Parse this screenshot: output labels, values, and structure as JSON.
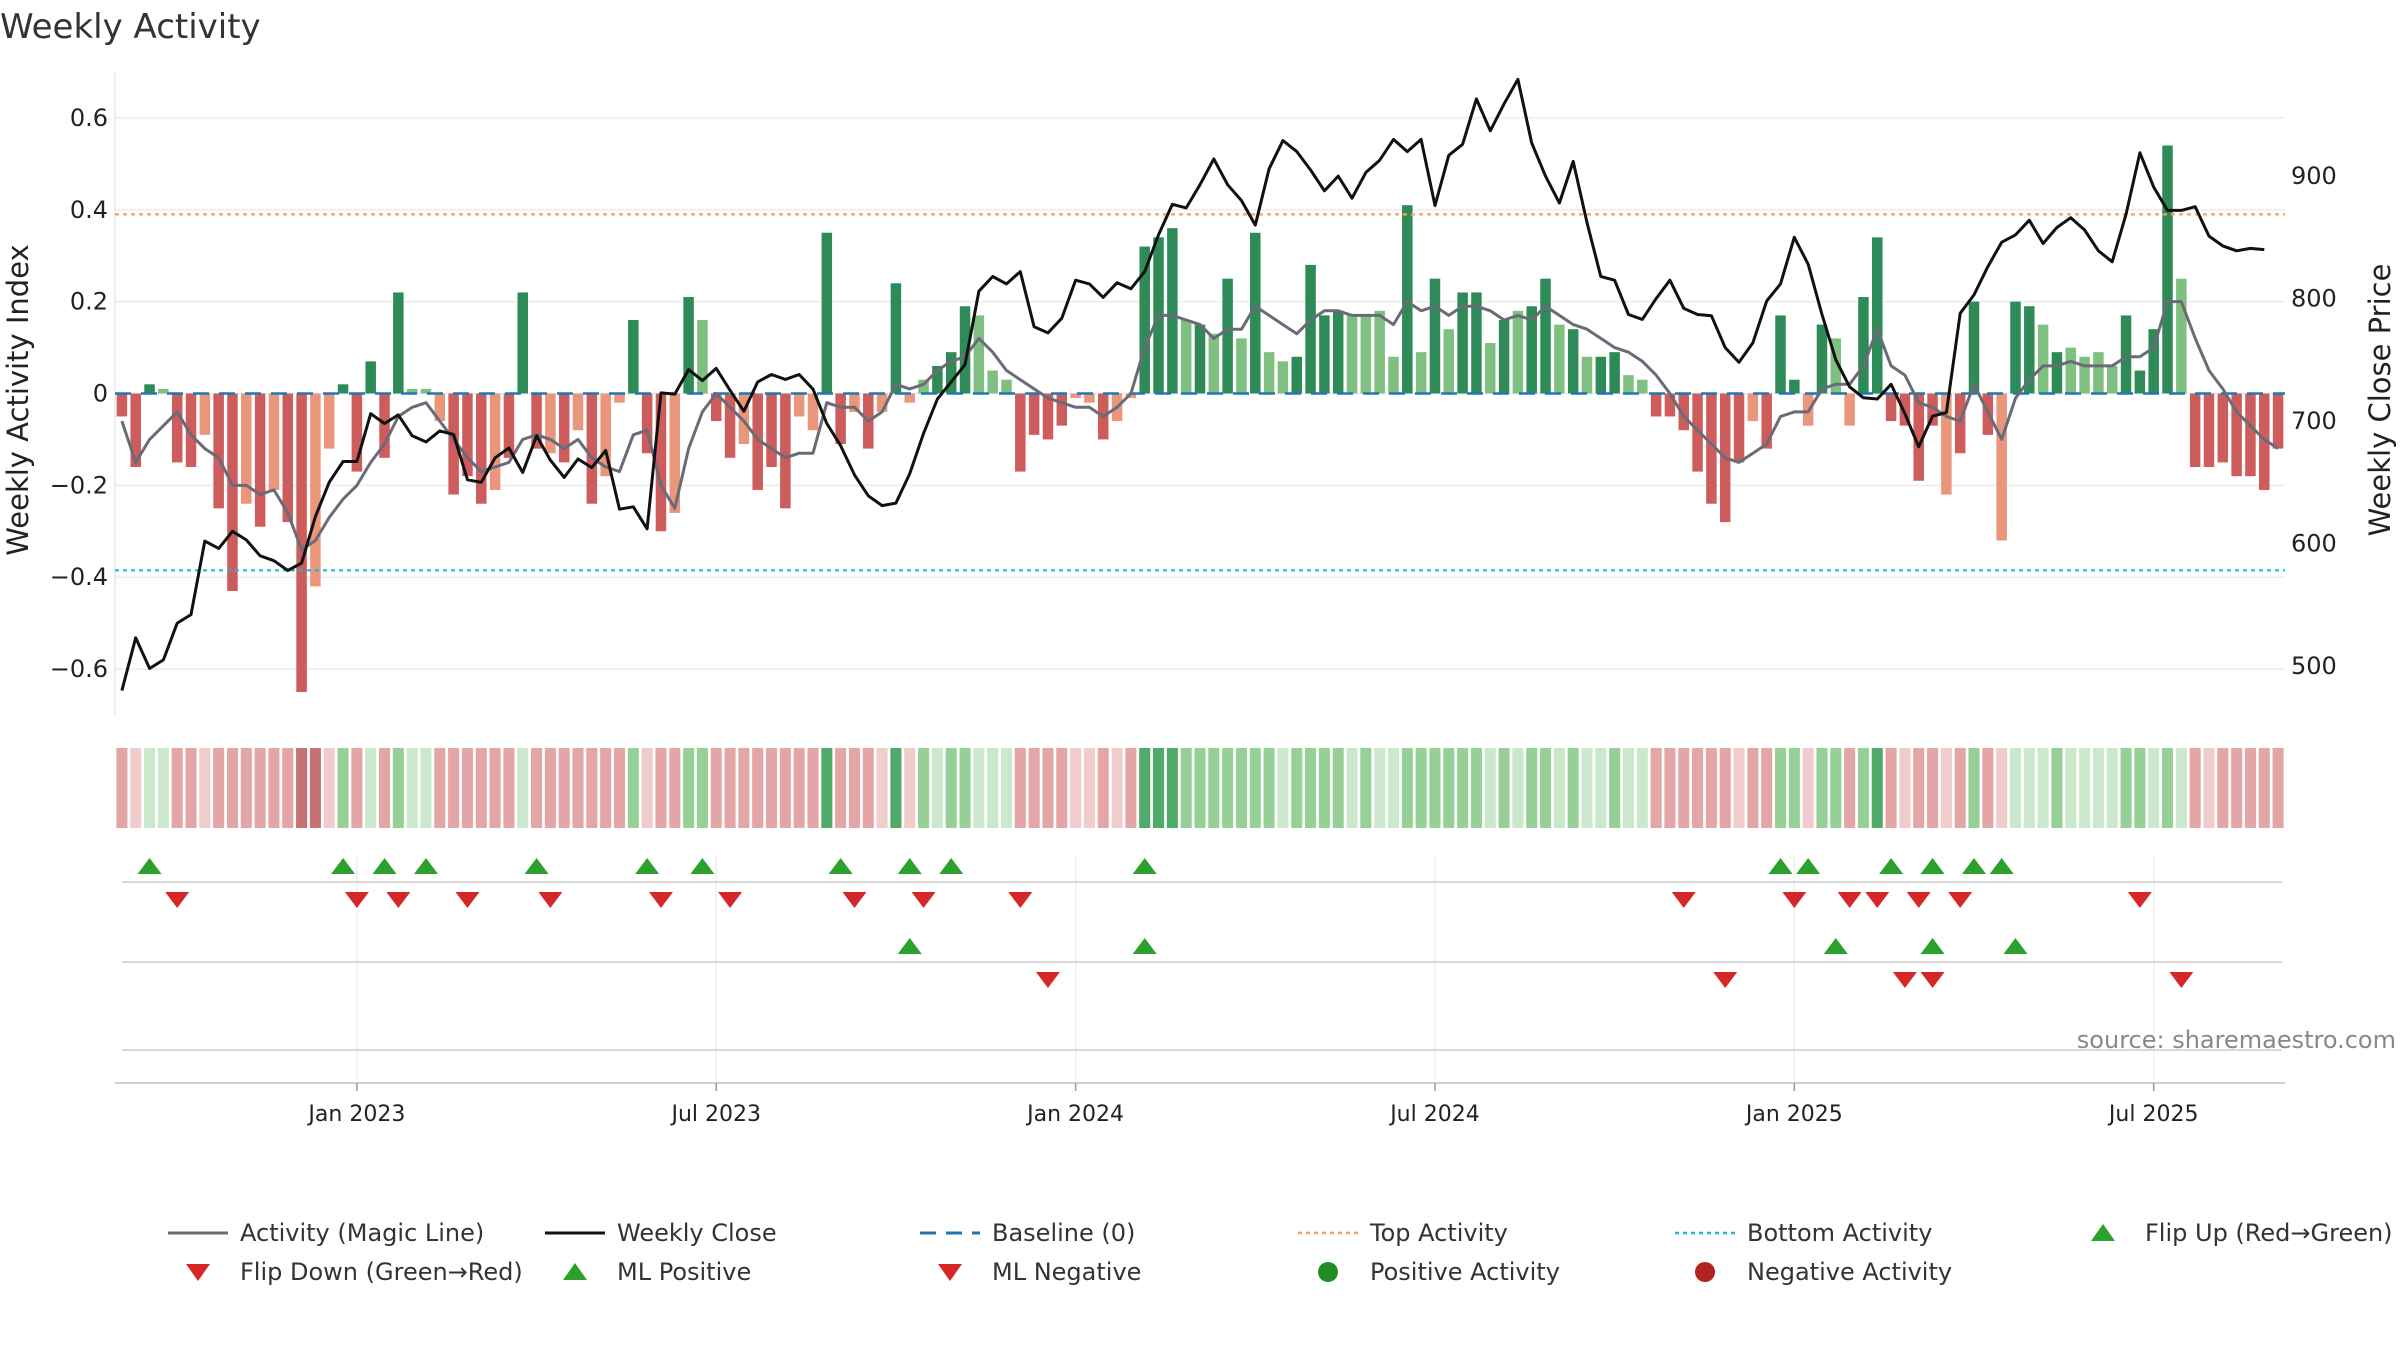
{
  "title": "Weekly Activity",
  "source": "source: sharemaestro.com",
  "colors": {
    "strong_green": "#2e8b57",
    "light_green": "#7fbf7f",
    "strong_red": "#cd5c5c",
    "light_red": "#e9967a",
    "magic_line": "#6b6b78",
    "close_line": "#111111",
    "baseline": "#1f77b4",
    "top_activity": "#f4a460",
    "bottom_activity": "#17becf",
    "marker_green": "#2ca02c",
    "marker_red": "#d62728",
    "dot_green": "#228b22",
    "dot_red": "#b22222"
  },
  "legend": [
    {
      "key": "magic",
      "label": "Activity (Magic Line)",
      "symbol": "line",
      "color": "#6b6b78"
    },
    {
      "key": "close",
      "label": "Weekly Close",
      "symbol": "line",
      "color": "#111111"
    },
    {
      "key": "baseline",
      "label": "Baseline (0)",
      "symbol": "dashed",
      "color": "#1f77b4"
    },
    {
      "key": "top",
      "label": "Top Activity",
      "symbol": "dotted",
      "color": "#f4a460"
    },
    {
      "key": "bottom",
      "label": "Bottom Activity",
      "symbol": "dotted",
      "color": "#17becf"
    },
    {
      "key": "flipup",
      "label": "Flip Up (Red→Green)",
      "symbol": "triangle-up",
      "color": "#2ca02c"
    },
    {
      "key": "flipdown",
      "label": "Flip Down (Green→Red)",
      "symbol": "triangle-down",
      "color": "#d62728"
    },
    {
      "key": "mlpos",
      "label": "ML Positive",
      "symbol": "triangle-up",
      "color": "#2ca02c"
    },
    {
      "key": "mlneg",
      "label": "ML Negative",
      "symbol": "triangle-down",
      "color": "#d62728"
    },
    {
      "key": "pos",
      "label": "Positive Activity",
      "symbol": "dot",
      "color": "#228b22"
    },
    {
      "key": "neg",
      "label": "Negative Activity",
      "symbol": "dot",
      "color": "#b22222"
    }
  ],
  "chart_data": {
    "type": "bar",
    "ylabel": "Weekly Activity Index",
    "y2label": "Weekly Close Price",
    "ylim": [
      -0.7,
      0.7
    ],
    "y2lim": [
      460,
      985
    ],
    "yticks": [
      0.6,
      0.4,
      0.2,
      0,
      -0.2,
      -0.4,
      -0.6
    ],
    "ytick_labels": [
      "0.6",
      "0.4",
      "0.2",
      "0",
      "−0.2",
      "−0.4",
      "−0.6"
    ],
    "y2ticks": [
      900,
      800,
      700,
      600,
      500
    ],
    "xticks": [
      {
        "label": "Jan 2023",
        "week": 17
      },
      {
        "label": "Jul 2023",
        "week": 43
      },
      {
        "label": "Jan 2024",
        "week": 69
      },
      {
        "label": "Jul 2024",
        "week": 95
      },
      {
        "label": "Jan 2025",
        "week": 121
      },
      {
        "label": "Jul 2025",
        "week": 147
      }
    ],
    "top_activity": 0.39,
    "bottom_activity": -0.385,
    "baseline": 0,
    "activity": [
      -0.05,
      -0.16,
      0.02,
      0.01,
      -0.15,
      -0.16,
      -0.09,
      -0.25,
      -0.43,
      -0.24,
      -0.29,
      -0.21,
      -0.28,
      -0.65,
      -0.42,
      -0.12,
      0.02,
      -0.17,
      0.07,
      -0.14,
      0.22,
      0.01,
      0.01,
      -0.06,
      -0.22,
      -0.18,
      -0.24,
      -0.21,
      -0.14,
      0.22,
      -0.12,
      -0.13,
      -0.15,
      -0.08,
      -0.24,
      -0.18,
      -0.02,
      0.16,
      -0.13,
      -0.3,
      -0.26,
      0.21,
      0.16,
      -0.06,
      -0.14,
      -0.11,
      -0.21,
      -0.16,
      -0.25,
      -0.05,
      -0.08,
      0.35,
      -0.11,
      -0.04,
      -0.12,
      -0.04,
      0.24,
      -0.02,
      0.03,
      0.06,
      0.09,
      0.19,
      0.17,
      0.05,
      0.03,
      -0.17,
      -0.09,
      -0.1,
      -0.07,
      -0.01,
      -0.02,
      -0.1,
      -0.06,
      -0.01,
      0.32,
      0.34,
      0.36,
      0.16,
      0.15,
      0.13,
      0.25,
      0.12,
      0.35,
      0.09,
      0.07,
      0.08,
      0.28,
      0.17,
      0.18,
      0.17,
      0.17,
      0.18,
      0.08,
      0.41,
      0.09,
      0.25,
      0.14,
      0.22,
      0.22,
      0.11,
      0.16,
      0.18,
      0.19,
      0.25,
      0.15,
      0.14,
      0.08,
      0.08,
      0.09,
      0.04,
      0.03,
      -0.05,
      -0.05,
      -0.08,
      -0.17,
      -0.24,
      -0.28,
      -0.15,
      -0.06,
      -0.12,
      0.17,
      0.03,
      -0.07,
      0.15,
      0.12,
      -0.07,
      0.21,
      0.34,
      -0.06,
      -0.07,
      -0.19,
      -0.07,
      -0.22,
      -0.13,
      0.2,
      -0.09,
      -0.32,
      0.2,
      0.19,
      0.15,
      0.09,
      0.1,
      0.08,
      0.09,
      0.06,
      0.17,
      0.05,
      0.14,
      0.54,
      0.25,
      -0.16,
      -0.16,
      -0.15,
      -0.18,
      -0.18,
      -0.21,
      -0.12
    ],
    "bar_strength": [
      1,
      1,
      1,
      0,
      1,
      1,
      0,
      1,
      1,
      0,
      1,
      0,
      1,
      1,
      0,
      0,
      1,
      1,
      1,
      1,
      1,
      0,
      0,
      0,
      1,
      1,
      1,
      0,
      1,
      1,
      1,
      0,
      1,
      0,
      1,
      0,
      0,
      1,
      1,
      1,
      0,
      1,
      0,
      1,
      1,
      0,
      1,
      1,
      1,
      0,
      0,
      1,
      1,
      0,
      1,
      0,
      1,
      0,
      0,
      1,
      1,
      1,
      0,
      0,
      0,
      1,
      1,
      1,
      1,
      0,
      0,
      1,
      0,
      0,
      1,
      1,
      1,
      0,
      1,
      0,
      1,
      0,
      1,
      0,
      0,
      1,
      1,
      1,
      1,
      0,
      0,
      0,
      0,
      1,
      0,
      1,
      0,
      1,
      1,
      0,
      1,
      0,
      1,
      1,
      0,
      1,
      0,
      1,
      1,
      0,
      0,
      1,
      1,
      1,
      1,
      1,
      1,
      1,
      0,
      1,
      1,
      1,
      0,
      1,
      0,
      0,
      1,
      1,
      1,
      1,
      1,
      1,
      0,
      1,
      1,
      1,
      0,
      1,
      1,
      0,
      1,
      0,
      0,
      0,
      0,
      1,
      1,
      1,
      1,
      0,
      1,
      1,
      1,
      1,
      1,
      1,
      1,
      1
    ],
    "magic_line": [
      -0.06,
      -0.15,
      -0.1,
      -0.07,
      -0.04,
      -0.09,
      -0.12,
      -0.14,
      -0.2,
      -0.2,
      -0.22,
      -0.21,
      -0.26,
      -0.34,
      -0.32,
      -0.27,
      -0.23,
      -0.2,
      -0.15,
      -0.11,
      -0.05,
      -0.03,
      -0.02,
      -0.06,
      -0.1,
      -0.14,
      -0.17,
      -0.16,
      -0.15,
      -0.1,
      -0.09,
      -0.1,
      -0.12,
      -0.1,
      -0.14,
      -0.16,
      -0.17,
      -0.09,
      -0.08,
      -0.2,
      -0.25,
      -0.12,
      -0.04,
      0.0,
      -0.03,
      -0.06,
      -0.1,
      -0.12,
      -0.14,
      -0.13,
      -0.13,
      -0.02,
      -0.03,
      -0.03,
      -0.06,
      -0.04,
      0.02,
      0.01,
      0.02,
      0.05,
      0.07,
      0.08,
      0.12,
      0.09,
      0.05,
      0.03,
      0.01,
      -0.01,
      -0.02,
      -0.03,
      -0.03,
      -0.05,
      -0.03,
      0.0,
      0.1,
      0.17,
      0.17,
      0.16,
      0.15,
      0.12,
      0.14,
      0.14,
      0.19,
      0.17,
      0.15,
      0.13,
      0.16,
      0.18,
      0.18,
      0.17,
      0.17,
      0.17,
      0.15,
      0.2,
      0.18,
      0.19,
      0.17,
      0.19,
      0.19,
      0.18,
      0.16,
      0.17,
      0.16,
      0.19,
      0.17,
      0.15,
      0.14,
      0.12,
      0.1,
      0.09,
      0.07,
      0.04,
      0.0,
      -0.05,
      -0.08,
      -0.11,
      -0.14,
      -0.15,
      -0.13,
      -0.11,
      -0.05,
      -0.04,
      -0.04,
      0.01,
      0.02,
      0.02,
      0.06,
      0.14,
      0.06,
      0.04,
      -0.02,
      -0.03,
      -0.05,
      -0.06,
      0.02,
      -0.04,
      -0.1,
      -0.01,
      0.03,
      0.06,
      0.06,
      0.07,
      0.06,
      0.06,
      0.06,
      0.08,
      0.08,
      0.1,
      0.2,
      0.2,
      0.12,
      0.05,
      0.01,
      -0.04,
      -0.07,
      -0.1,
      -0.12
    ],
    "weekly_close": [
      480,
      523,
      498,
      505,
      535,
      542,
      602,
      596,
      610,
      603,
      590,
      586,
      578,
      584,
      622,
      650,
      667,
      667,
      706,
      698,
      705,
      688,
      683,
      692,
      689,
      652,
      650,
      670,
      678,
      658,
      688,
      668,
      654,
      669,
      662,
      676,
      628,
      630,
      612,
      723,
      722,
      742,
      733,
      743,
      725,
      708,
      732,
      738,
      734,
      738,
      726,
      698,
      680,
      656,
      639,
      631,
      633,
      657,
      690,
      718,
      732,
      746,
      806,
      818,
      812,
      822,
      777,
      772,
      784,
      815,
      812,
      801,
      813,
      808,
      822,
      852,
      877,
      874,
      893,
      914,
      893,
      880,
      860,
      906,
      929,
      920,
      905,
      888,
      900,
      882,
      903,
      913,
      930,
      920,
      930,
      876,
      917,
      926,
      963,
      937,
      959,
      979,
      927,
      900,
      878,
      912,
      862,
      818,
      815,
      787,
      783,
      800,
      815,
      792,
      787,
      786,
      760,
      748,
      764,
      798,
      812,
      850,
      828,
      787,
      750,
      728,
      719,
      718,
      730,
      706,
      679,
      704,
      707,
      788,
      803,
      826,
      846,
      852,
      864,
      845,
      858,
      866,
      856,
      839,
      830,
      869,
      919,
      891,
      872,
      872,
      875,
      851,
      843,
      839,
      841,
      840
    ],
    "heat_strength": [
      1,
      0,
      0,
      0,
      1,
      1,
      0,
      1,
      1,
      1,
      1,
      1,
      1,
      2,
      2,
      0,
      1,
      1,
      0,
      1,
      1,
      0,
      0,
      1,
      1,
      1,
      1,
      1,
      1,
      0,
      1,
      1,
      1,
      1,
      1,
      1,
      1,
      1,
      0,
      1,
      1,
      1,
      1,
      1,
      1,
      1,
      1,
      1,
      1,
      1,
      1,
      2,
      1,
      1,
      1,
      0,
      2,
      0,
      1,
      0,
      1,
      1,
      0,
      0,
      0,
      1,
      1,
      1,
      1,
      0,
      0,
      1,
      0,
      1,
      2,
      2,
      2,
      1,
      1,
      1,
      1,
      1,
      1,
      1,
      0,
      1,
      1,
      1,
      1,
      0,
      1,
      0,
      0,
      1,
      1,
      1,
      1,
      1,
      1,
      0,
      1,
      0,
      1,
      1,
      0,
      1,
      0,
      0,
      1,
      0,
      0,
      1,
      1,
      1,
      1,
      1,
      1,
      0,
      1,
      1,
      1,
      1,
      0,
      1,
      1,
      1,
      1,
      2,
      1,
      0,
      1,
      1,
      0,
      1,
      1,
      1,
      0,
      0,
      0,
      0,
      1,
      0,
      0,
      0,
      0,
      1,
      1,
      0,
      1,
      0,
      1,
      0,
      1,
      1,
      1,
      1,
      1,
      1
    ],
    "signals": {
      "flip_up": [
        2,
        16,
        19,
        22,
        30,
        38,
        42,
        52,
        57,
        60,
        74,
        120,
        122,
        128,
        131,
        134,
        136
      ],
      "flip_down": [
        4,
        17,
        20,
        25,
        31,
        39,
        44,
        53,
        58,
        65,
        113,
        121,
        125,
        127,
        130,
        133,
        146
      ],
      "ml_positive": [
        57,
        74,
        124,
        131,
        137
      ],
      "ml_negative": [
        67,
        116,
        129,
        131,
        149
      ]
    }
  }
}
